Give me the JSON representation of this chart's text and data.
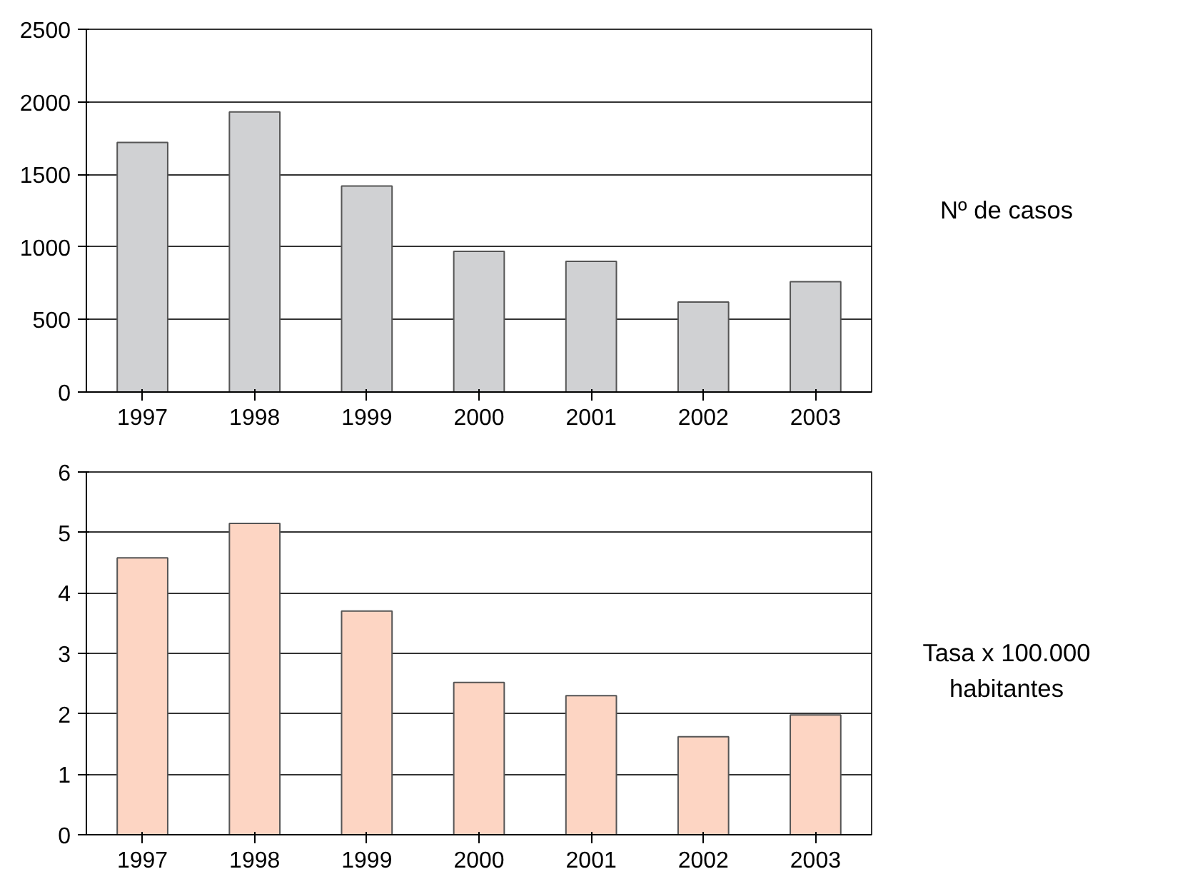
{
  "chart_data": [
    {
      "type": "bar",
      "categories": [
        "1997",
        "1998",
        "1999",
        "2000",
        "2001",
        "2002",
        "2003"
      ],
      "values": [
        1720,
        1930,
        1420,
        970,
        900,
        620,
        760
      ],
      "color": "#d0d1d3",
      "ylim": [
        0,
        2500
      ],
      "yticks": [
        0,
        500,
        1000,
        1500,
        2000,
        2500
      ],
      "grid": "y",
      "annotations": [
        "Nº de casos"
      ]
    },
    {
      "type": "bar",
      "categories": [
        "1997",
        "1998",
        "1999",
        "2000",
        "2001",
        "2002",
        "2003"
      ],
      "values": [
        4.58,
        5.15,
        3.7,
        2.52,
        2.3,
        1.62,
        1.98
      ],
      "color": "#fdd5c3",
      "ylim": [
        0,
        6
      ],
      "yticks": [
        0,
        1,
        2,
        3,
        4,
        5,
        6
      ],
      "grid": "y",
      "annotations": [
        "Tasa x 100.000 habitantes"
      ]
    }
  ]
}
